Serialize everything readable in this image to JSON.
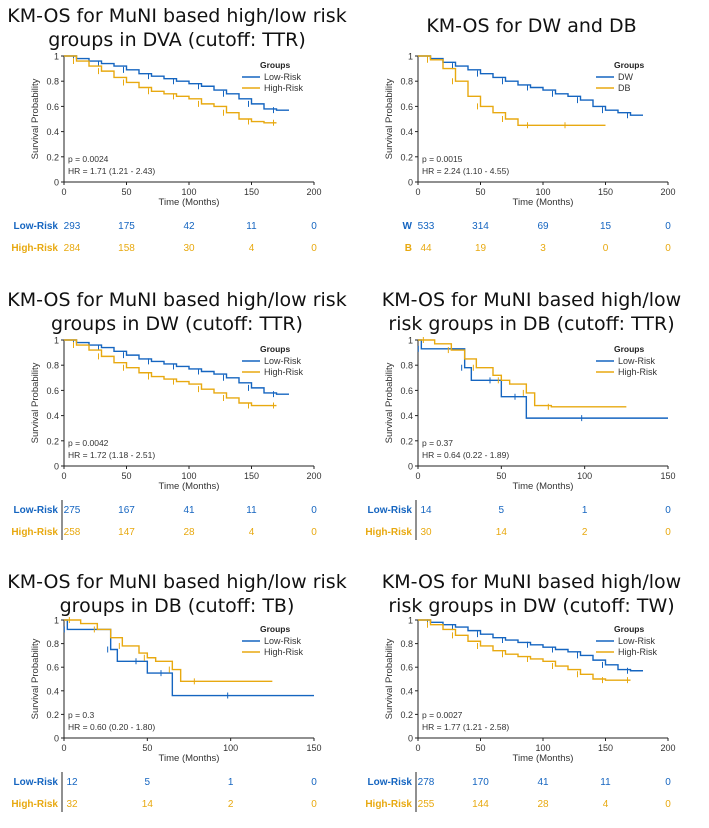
{
  "colors": {
    "low": "#1565c0",
    "high": "#e8a910",
    "axis": "#222222",
    "text": "#333333"
  },
  "chart_data": [
    {
      "type": "line",
      "title_line1": "KM-OS for MuNI based high/low risk",
      "title_line2": "groups in DVA (cutoff: TTR)",
      "xlabel": "Time (Months)",
      "ylabel": "Survival Probability",
      "xlim": [
        0,
        200
      ],
      "ylim": [
        0,
        1
      ],
      "xticks": [
        0,
        50,
        100,
        150,
        200
      ],
      "yticks": [
        0,
        0.2,
        0.4,
        0.6,
        0.8,
        1
      ],
      "legend_title": "Groups",
      "legend": [
        "Low-Risk",
        "High-Risk"
      ],
      "pvalue": "p = 0.0024",
      "hr": "HR = 1.71 (1.21 - 2.43)",
      "series": [
        {
          "name": "Low-Risk",
          "x": [
            0,
            10,
            20,
            30,
            40,
            50,
            60,
            70,
            80,
            90,
            100,
            110,
            120,
            130,
            140,
            150,
            160,
            170,
            180
          ],
          "y": [
            1,
            0.98,
            0.96,
            0.94,
            0.92,
            0.89,
            0.86,
            0.84,
            0.82,
            0.8,
            0.78,
            0.76,
            0.73,
            0.7,
            0.66,
            0.62,
            0.58,
            0.57,
            0.57
          ]
        },
        {
          "name": "High-Risk",
          "x": [
            0,
            10,
            20,
            30,
            40,
            50,
            60,
            70,
            80,
            90,
            100,
            110,
            120,
            130,
            140,
            150,
            160,
            170
          ],
          "y": [
            1,
            0.96,
            0.92,
            0.88,
            0.83,
            0.79,
            0.75,
            0.72,
            0.7,
            0.68,
            0.66,
            0.62,
            0.6,
            0.55,
            0.5,
            0.48,
            0.47,
            0.47
          ]
        }
      ],
      "risk_table": {
        "rows": [
          {
            "label": "Low-Risk",
            "counts": [
              "293",
              "175",
              "42",
              "11",
              "0"
            ]
          },
          {
            "label": "High-Risk",
            "counts": [
              "284",
              "158",
              "30",
              "4",
              "0"
            ]
          }
        ],
        "divider": false
      }
    },
    {
      "type": "line",
      "title_line1": "KM-OS for DW and DB",
      "title_line2": "",
      "xlabel": "Time (Months)",
      "ylabel": "Survival Probability",
      "xlim": [
        0,
        200
      ],
      "ylim": [
        0,
        1
      ],
      "xticks": [
        0,
        50,
        100,
        150,
        200
      ],
      "yticks": [
        0,
        0.2,
        0.4,
        0.6,
        0.8,
        1
      ],
      "legend_title": "Groups",
      "legend": [
        "DW",
        "DB"
      ],
      "pvalue": "p = 0.0015",
      "hr": "HR = 2.24 (1.10 - 4.55)",
      "series": [
        {
          "name": "DW",
          "x": [
            0,
            10,
            20,
            30,
            40,
            50,
            60,
            70,
            80,
            90,
            100,
            110,
            120,
            130,
            140,
            150,
            160,
            170,
            180
          ],
          "y": [
            1,
            0.98,
            0.95,
            0.92,
            0.89,
            0.86,
            0.83,
            0.8,
            0.77,
            0.75,
            0.73,
            0.7,
            0.68,
            0.65,
            0.6,
            0.57,
            0.55,
            0.53,
            0.53
          ]
        },
        {
          "name": "DB",
          "x": [
            0,
            10,
            20,
            30,
            40,
            50,
            60,
            70,
            80,
            90,
            100,
            120,
            150
          ],
          "y": [
            1,
            0.97,
            0.9,
            0.8,
            0.68,
            0.6,
            0.55,
            0.5,
            0.45,
            0.45,
            0.45,
            0.45,
            0.45
          ]
        }
      ],
      "risk_table": {
        "rows": [
          {
            "label": "W",
            "counts": [
              "533",
              "314",
              "69",
              "15",
              "0"
            ]
          },
          {
            "label": "B",
            "counts": [
              "44",
              "19",
              "3",
              "0",
              "0"
            ]
          }
        ],
        "divider": false
      }
    },
    {
      "type": "line",
      "title_line1": "KM-OS for MuNI based high/low risk",
      "title_line2": "groups in DW (cutoff: TTR)",
      "xlabel": "Time (Months)",
      "ylabel": "Survival Probability",
      "xlim": [
        0,
        200
      ],
      "ylim": [
        0,
        1
      ],
      "xticks": [
        0,
        50,
        100,
        150,
        200
      ],
      "yticks": [
        0,
        0.2,
        0.4,
        0.6,
        0.8,
        1
      ],
      "legend_title": "Groups",
      "legend": [
        "Low-Risk",
        "High-Risk"
      ],
      "pvalue": "p = 0.0042",
      "hr": "HR = 1.72 (1.18 - 2.51)",
      "series": [
        {
          "name": "Low-Risk",
          "x": [
            0,
            10,
            20,
            30,
            40,
            50,
            60,
            70,
            80,
            90,
            100,
            110,
            120,
            130,
            140,
            150,
            160,
            170,
            180
          ],
          "y": [
            1,
            0.98,
            0.96,
            0.94,
            0.91,
            0.88,
            0.85,
            0.83,
            0.81,
            0.79,
            0.77,
            0.75,
            0.73,
            0.7,
            0.66,
            0.62,
            0.58,
            0.57,
            0.57
          ]
        },
        {
          "name": "High-Risk",
          "x": [
            0,
            10,
            20,
            30,
            40,
            50,
            60,
            70,
            80,
            90,
            100,
            110,
            120,
            130,
            140,
            150,
            160,
            170
          ],
          "y": [
            1,
            0.96,
            0.92,
            0.87,
            0.82,
            0.78,
            0.74,
            0.71,
            0.69,
            0.67,
            0.65,
            0.61,
            0.58,
            0.54,
            0.5,
            0.48,
            0.48,
            0.48
          ]
        }
      ],
      "risk_table": {
        "rows": [
          {
            "label": "Low-Risk",
            "counts": [
              "275",
              "167",
              "41",
              "11",
              "0"
            ]
          },
          {
            "label": "High-Risk",
            "counts": [
              "258",
              "147",
              "28",
              "4",
              "0"
            ]
          }
        ],
        "divider": true
      }
    },
    {
      "type": "line",
      "title_line1": "KM-OS for MuNI based high/low",
      "title_line2": "risk groups in DB (cutoff: TTR)",
      "xlabel": "Time (Months)",
      "ylabel": "Survival Probability",
      "xlim": [
        0,
        150
      ],
      "ylim": [
        0,
        1
      ],
      "xticks": [
        0,
        50,
        100,
        150
      ],
      "yticks": [
        0,
        0.2,
        0.4,
        0.6,
        0.8,
        1
      ],
      "legend_title": "Groups",
      "legend": [
        "Low-Risk",
        "High-Risk"
      ],
      "pvalue": "p = 0.37",
      "hr": "HR = 0.64 (0.22 - 1.89)",
      "series": [
        {
          "name": "Low-Risk",
          "x": [
            0,
            2,
            25,
            28,
            32,
            45,
            50,
            60,
            65,
            100,
            150
          ],
          "y": [
            1,
            0.93,
            0.93,
            0.78,
            0.68,
            0.68,
            0.55,
            0.55,
            0.38,
            0.38,
            0.38
          ]
        },
        {
          "name": "High-Risk",
          "x": [
            0,
            5,
            10,
            20,
            28,
            35,
            45,
            50,
            55,
            65,
            70,
            80,
            125
          ],
          "y": [
            1,
            1,
            0.97,
            0.92,
            0.85,
            0.78,
            0.72,
            0.68,
            0.65,
            0.58,
            0.48,
            0.47,
            0.47
          ]
        }
      ],
      "risk_table": {
        "rows": [
          {
            "label": "Low-Risk",
            "counts": [
              "14",
              "5",
              "1",
              "0"
            ]
          },
          {
            "label": "High-Risk",
            "counts": [
              "30",
              "14",
              "2",
              "0"
            ]
          }
        ],
        "divider": true
      }
    },
    {
      "type": "line",
      "title_line1": "KM-OS for MuNI based high/low risk",
      "title_line2": "groups in DB (cutoff: TB)",
      "xlabel": "Time (Months)",
      "ylabel": "Survival Probability",
      "xlim": [
        0,
        150
      ],
      "ylim": [
        0,
        1
      ],
      "xticks": [
        0,
        50,
        100,
        150
      ],
      "yticks": [
        0,
        0.2,
        0.4,
        0.6,
        0.8,
        1
      ],
      "legend_title": "Groups",
      "legend": [
        "Low-Risk",
        "High-Risk"
      ],
      "pvalue": "p = 0.3",
      "hr": "HR = 0.60 (0.20 - 1.80)",
      "series": [
        {
          "name": "Low-Risk",
          "x": [
            0,
            2,
            25,
            28,
            32,
            45,
            50,
            60,
            65,
            100,
            150
          ],
          "y": [
            1,
            0.92,
            0.92,
            0.75,
            0.65,
            0.65,
            0.55,
            0.55,
            0.36,
            0.36,
            0.36
          ]
        },
        {
          "name": "High-Risk",
          "x": [
            0,
            5,
            10,
            20,
            28,
            35,
            45,
            50,
            55,
            65,
            70,
            80,
            125
          ],
          "y": [
            1,
            1,
            0.97,
            0.92,
            0.85,
            0.78,
            0.72,
            0.68,
            0.65,
            0.58,
            0.48,
            0.48,
            0.48
          ]
        }
      ],
      "risk_table": {
        "rows": [
          {
            "label": "Low-Risk",
            "counts": [
              "12",
              "5",
              "1",
              "0"
            ]
          },
          {
            "label": "High-Risk",
            "counts": [
              "32",
              "14",
              "2",
              "0"
            ]
          }
        ],
        "divider": true
      }
    },
    {
      "type": "line",
      "title_line1": "KM-OS for MuNI based high/low",
      "title_line2": "risk groups in DW (cutoff: TW)",
      "xlabel": "Time (Months)",
      "ylabel": "Survival Probability",
      "xlim": [
        0,
        200
      ],
      "ylim": [
        0,
        1
      ],
      "xticks": [
        0,
        50,
        100,
        150,
        200
      ],
      "yticks": [
        0,
        0.2,
        0.4,
        0.6,
        0.8,
        1
      ],
      "legend_title": "Groups",
      "legend": [
        "Low-Risk",
        "High-Risk"
      ],
      "pvalue": "p = 0.0027",
      "hr": "HR = 1.77 (1.21 - 2.58)",
      "series": [
        {
          "name": "Low-Risk",
          "x": [
            0,
            10,
            20,
            30,
            40,
            50,
            60,
            70,
            80,
            90,
            100,
            110,
            120,
            130,
            140,
            150,
            160,
            170,
            180
          ],
          "y": [
            1,
            0.98,
            0.96,
            0.94,
            0.91,
            0.88,
            0.85,
            0.83,
            0.81,
            0.79,
            0.77,
            0.75,
            0.73,
            0.7,
            0.66,
            0.62,
            0.58,
            0.57,
            0.57
          ]
        },
        {
          "name": "High-Risk",
          "x": [
            0,
            10,
            20,
            30,
            40,
            50,
            60,
            70,
            80,
            90,
            100,
            110,
            120,
            130,
            140,
            150,
            160,
            170
          ],
          "y": [
            1,
            0.96,
            0.92,
            0.87,
            0.82,
            0.78,
            0.74,
            0.71,
            0.69,
            0.67,
            0.65,
            0.61,
            0.58,
            0.54,
            0.5,
            0.49,
            0.49,
            0.49
          ]
        }
      ],
      "risk_table": {
        "rows": [
          {
            "label": "Low-Risk",
            "counts": [
              "278",
              "170",
              "41",
              "11",
              "0"
            ]
          },
          {
            "label": "High-Risk",
            "counts": [
              "255",
              "144",
              "28",
              "4",
              "0"
            ]
          }
        ],
        "divider": true
      }
    }
  ]
}
